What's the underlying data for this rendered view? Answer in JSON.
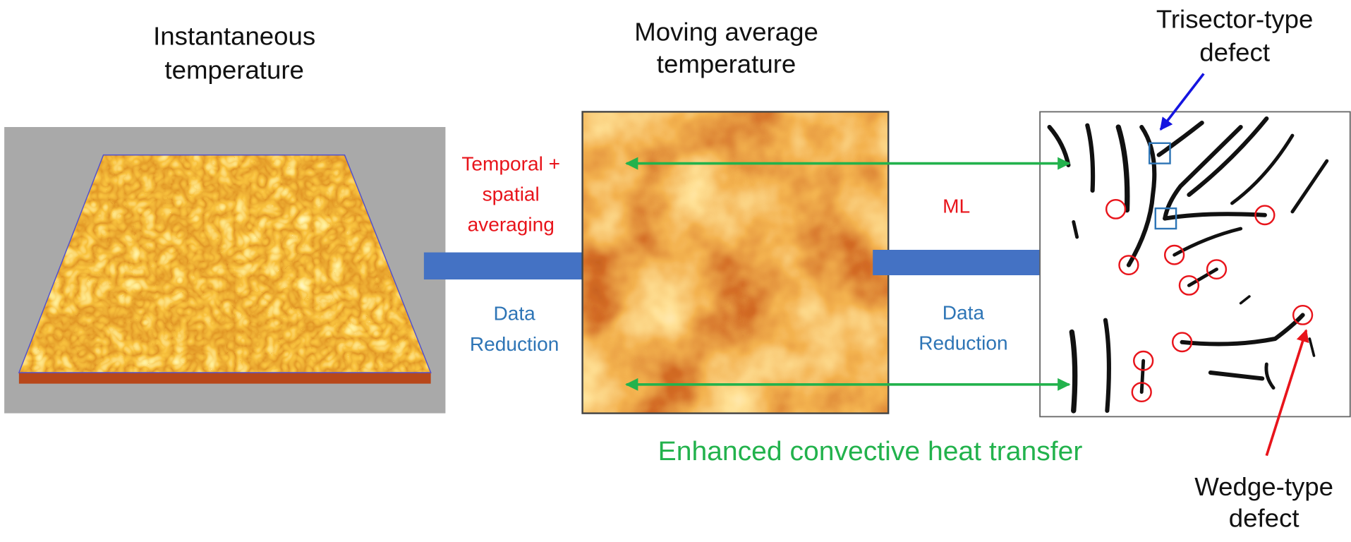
{
  "panels": [
    {
      "title": [
        "Instantaneous",
        "temperature"
      ]
    },
    {
      "title": [
        "Moving average",
        "temperature"
      ]
    }
  ],
  "steps": [
    {
      "method": [
        "Temporal +",
        "spatial",
        "averaging"
      ],
      "note": [
        "Data",
        "Reduction"
      ]
    },
    {
      "method": [
        "ML"
      ],
      "note": [
        "Data",
        "Reduction"
      ]
    }
  ],
  "callouts": {
    "trisector": [
      "Trisector-type",
      "defect"
    ],
    "wedge": [
      "Wedge-type",
      "defect"
    ]
  },
  "caption": "Enhanced convective heat transfer"
}
